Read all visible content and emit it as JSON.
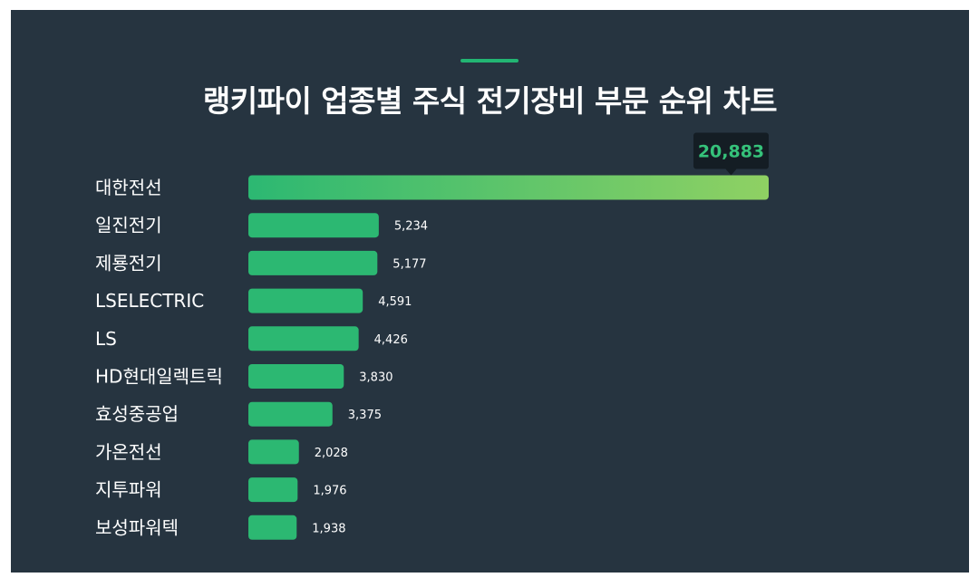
{
  "chart_data": {
    "type": "bar",
    "orientation": "horizontal",
    "title": "랭키파이 업종별 주식 전기장비 부문 순위 차트",
    "categories": [
      "대한전선",
      "일진전기",
      "제룡전기",
      "LSELECTRIC",
      "LS",
      "HD현대일렉트릭",
      "효성중공업",
      "가온전선",
      "지투파워",
      "보성파워텍"
    ],
    "values": [
      20883,
      5234,
      5177,
      4591,
      4426,
      3830,
      3375,
      2028,
      1976,
      1938
    ],
    "value_labels": [
      "20,883",
      "5,234",
      "5,177",
      "4,591",
      "4,426",
      "3,830",
      "3,375",
      "2,028",
      "1,976",
      "1,938"
    ],
    "highlight_index": 0,
    "colors": {
      "background": "#263440",
      "bar": "#2cb872",
      "bar_gradient_end": "#8fd163",
      "accent": "#22b573",
      "callout_bg": "#141d24",
      "callout_text": "#35c27a",
      "label": "#ffffff"
    },
    "xlim": [
      0,
      20883
    ],
    "grid": false,
    "legend": "none"
  }
}
